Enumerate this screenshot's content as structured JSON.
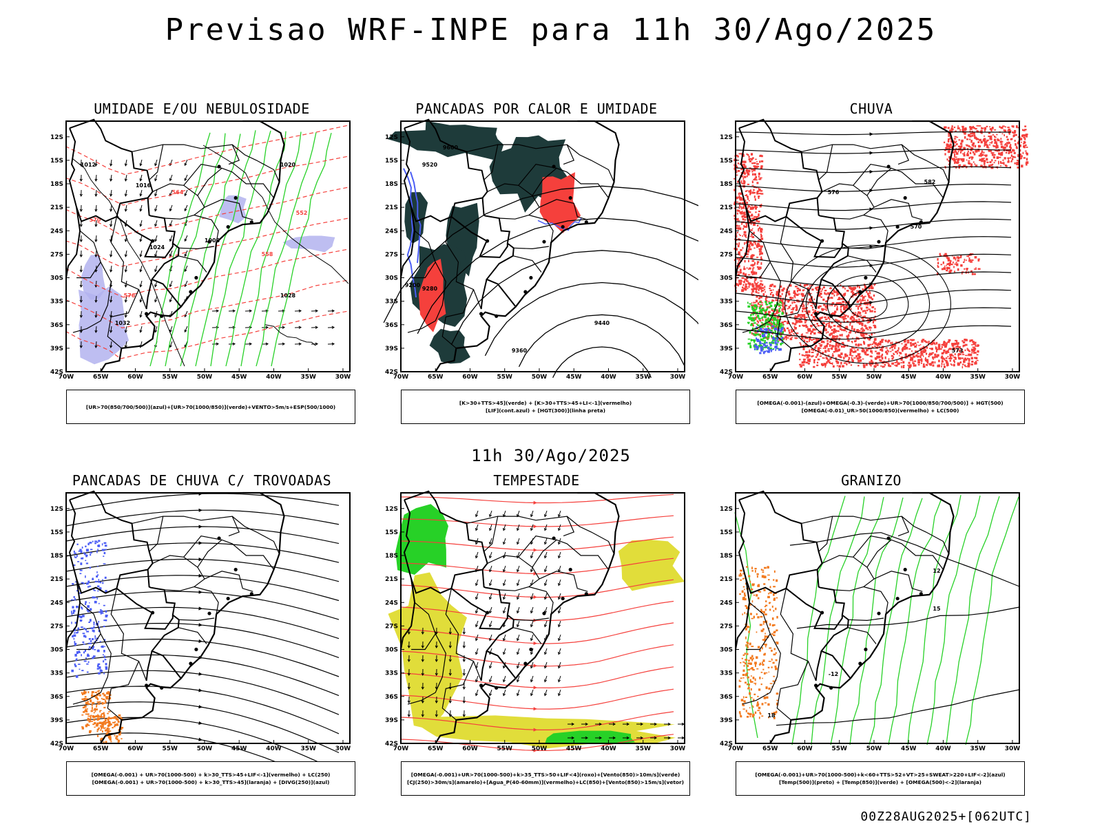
{
  "title": "Previsao WRF-INPE  para 11h 30/Ago/2025",
  "mid_title": "11h 30/Ago/2025",
  "footer": "00Z28AUG2025+[062UTC]",
  "lat_labels": [
    "12S",
    "15S",
    "18S",
    "21S",
    "24S",
    "27S",
    "30S",
    "33S",
    "36S",
    "39S",
    "42S"
  ],
  "lon_labels": [
    "70W",
    "65W",
    "60W",
    "55W",
    "50W",
    "45W",
    "40W",
    "35W",
    "30W"
  ],
  "colors": {
    "blue": "#4b5df5",
    "green": "#27d127",
    "red": "#f5403c",
    "dark_teal": "#1e3b3a",
    "yellow": "#e1dd3a",
    "orange": "#f27a1f",
    "lavender": "#b3b3ee"
  },
  "panels": [
    {
      "id": "umidade",
      "title": "UMIDADE E/OU NEBULOSIDADE",
      "legend": [
        "[UR>70(850/700/500)](azul)+[UR>70(1000/850)](verde)+VENTO>5m/s+ESP(500/1000)"
      ],
      "contour_labels": [
        "1012",
        "1016",
        "1020",
        "1024",
        "1028",
        "1032",
        "1008",
        "570",
        "564",
        "558",
        "552",
        "576"
      ]
    },
    {
      "id": "pancadas_calor",
      "title": "PANCADAS POR CALOR E UMIDADE",
      "legend": [
        "[K>30+TTS>45](verde) + [K>30+TTS>45+LI<-1](vermelho)",
        "[LIF](cont.azul) + [HGT(300)](linha preta)"
      ],
      "contour_labels": [
        "9600",
        "9520",
        "9440",
        "9360",
        "9280",
        "9200"
      ]
    },
    {
      "id": "chuva",
      "title": "CHUVA",
      "legend": [
        "[OMEGA(-0.001)-(azul)+OMEGA(-0.3)-(verde)+UR>70(1000/850/700/500)] + HGT(500)",
        "[OMEGA(-0.01)_UR>50(1000/850)(vermelho) + LC(500)"
      ],
      "contour_labels": [
        "582",
        "576",
        "570",
        "573"
      ]
    },
    {
      "id": "trovoadas",
      "title": "PANCADAS DE CHUVA C/ TROVOADAS",
      "legend": [
        "[OMEGA(-0.001) + UR>70(1000-500) + k>30_TTS>45+LIF<-1](vermelho) + LC(250)",
        "[OMEGA(-0.001) + UR>70(1000-500) + k>30_TTS>45](laranja) + [DIVG(250)](azul)"
      ],
      "contour_labels": []
    },
    {
      "id": "tempestade",
      "title": "TEMPESTADE",
      "legend": [
        "[OMEGA(-0.001)+UR>70(1000-500)+k>35_TTS>50+LIF<4](roxo)+[Vento(850)>10m/s](verde)",
        "[CJ(250)>30m/s](amarelo)+[Agua_P(40-60mm)](vermelho)+LC(850)+[Vento(850)>15m/s](vetor)"
      ],
      "contour_labels": []
    },
    {
      "id": "granizo",
      "title": "GRANIZO",
      "legend": [
        "[OMEGA(-0.001)+UR>70(1000-500)+k<60+TTS>52+VT>25+SWEAT>220+LIF<-2](azul)",
        "[Temp(500)](preto) + [Temp(850)](verde) + [OMEGA(500)<-2](laranja)"
      ],
      "contour_labels": [
        "12",
        "15",
        "18",
        "-12"
      ]
    }
  ]
}
